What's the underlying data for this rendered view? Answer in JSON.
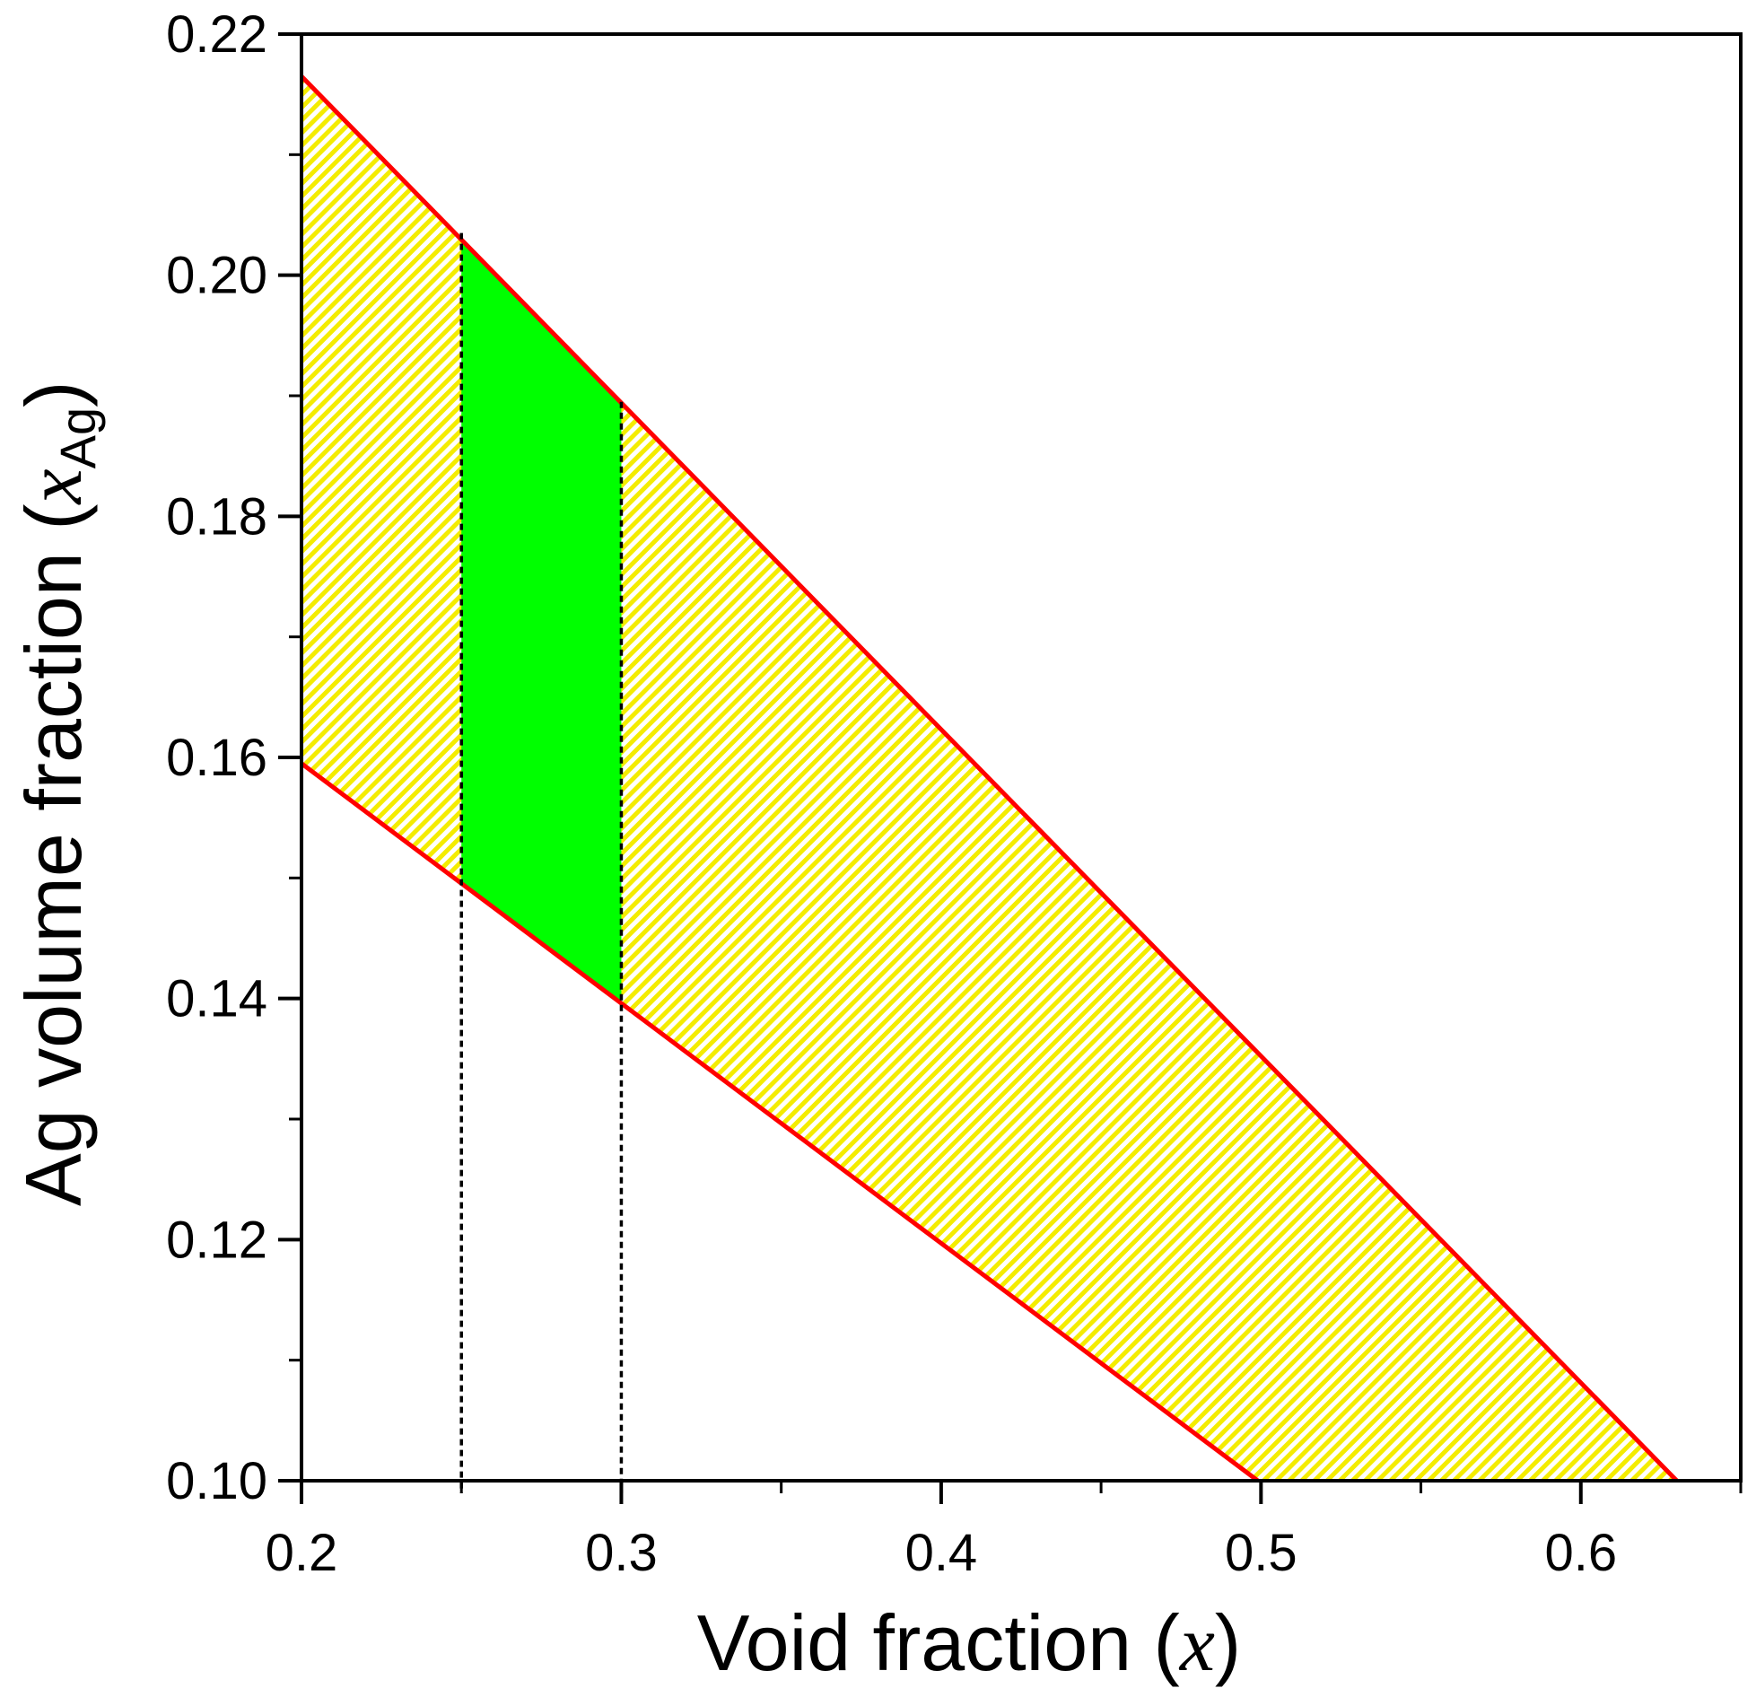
{
  "chart_data": {
    "type": "area",
    "xlabel": {
      "text": "Void fraction (",
      "symbol": "x",
      "close": ")"
    },
    "ylabel": {
      "text": "Ag volume fraction (",
      "symbol": "x",
      "subscript": "Ag",
      "close": ")"
    },
    "xlim": [
      0.2,
      0.65
    ],
    "ylim": [
      0.1,
      0.22
    ],
    "xticks": [
      0.2,
      0.3,
      0.4,
      0.5,
      0.6
    ],
    "xtick_labels": [
      "0.2",
      "0.3",
      "0.4",
      "0.5",
      "0.6"
    ],
    "yticks": [
      0.1,
      0.12,
      0.14,
      0.16,
      0.18,
      0.2,
      0.22
    ],
    "ytick_labels": [
      "0.10",
      "0.12",
      "0.14",
      "0.16",
      "0.18",
      "0.20",
      "0.22"
    ],
    "grid": false,
    "series": [
      {
        "role": "upper-bound",
        "color": "#ff0000",
        "x": [
          0.2,
          0.63
        ],
        "y": [
          0.2165,
          0.1
        ]
      },
      {
        "role": "lower-bound",
        "color": "#ff0000",
        "x": [
          0.2,
          0.499
        ],
        "y": [
          0.1595,
          0.1
        ]
      }
    ],
    "regions": [
      {
        "role": "feasible-hatched",
        "fill": "#ffff00",
        "hatch": "diagonal",
        "bounded_by": [
          "upper-bound",
          "lower-bound"
        ],
        "x_range": [
          0.2,
          0.63
        ]
      },
      {
        "role": "selected-solid",
        "fill": "#00ff00",
        "x_range": [
          0.25,
          0.3
        ]
      }
    ],
    "vertical_lines": [
      {
        "x": 0.25,
        "style": "dotted",
        "color": "#000000",
        "y_top": 0.2035
      },
      {
        "x": 0.3,
        "style": "dotted",
        "color": "#000000",
        "y_top": 0.1895
      }
    ]
  }
}
